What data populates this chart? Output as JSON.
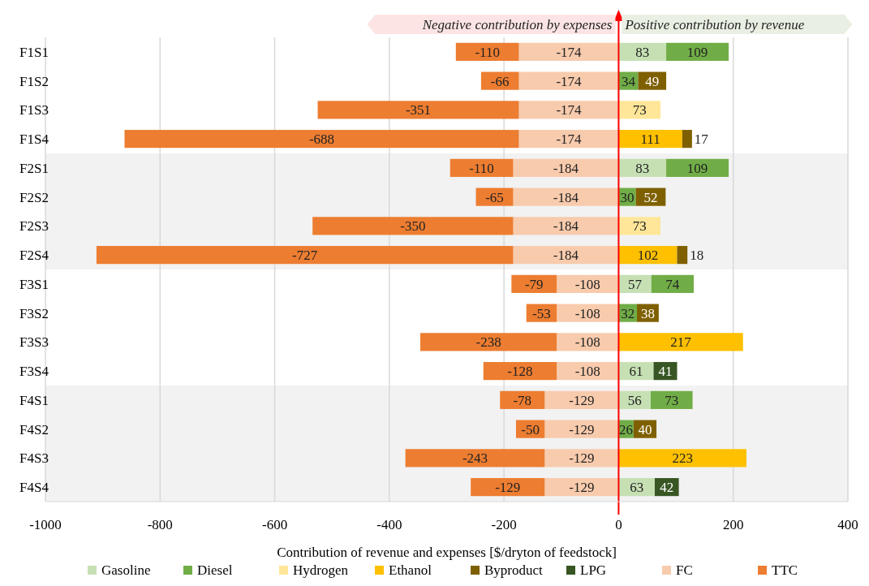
{
  "chart_data": {
    "type": "bar",
    "orientation": "horizontal",
    "stacked": true,
    "data_labels": true,
    "grid": "x",
    "legend": "bottom",
    "xlabel": "Contribution of revenue and expenses [$/dryton of feedstock]",
    "categories": [
      "F1S1",
      "F1S2",
      "F1S3",
      "F1S4",
      "F2S1",
      "F2S2",
      "F2S3",
      "F2S4",
      "F3S1",
      "F3S2",
      "F3S3",
      "F3S4",
      "F4S1",
      "F4S2",
      "F4S3",
      "F4S4"
    ],
    "xlim": [
      -1000,
      400
    ],
    "xticks": [
      -1000,
      -800,
      -600,
      -400,
      -200,
      0,
      200,
      400
    ],
    "series": [
      {
        "name": "Gasoline",
        "color": "#c6e0b4",
        "values": [
          83,
          null,
          null,
          null,
          83,
          null,
          null,
          null,
          57,
          null,
          null,
          61,
          56,
          null,
          null,
          63
        ]
      },
      {
        "name": "Diesel",
        "color": "#70ad47",
        "values": [
          109,
          34,
          null,
          null,
          109,
          30,
          null,
          null,
          74,
          32,
          null,
          null,
          73,
          26,
          null,
          null
        ]
      },
      {
        "name": "Hydrogen",
        "color": "#ffe699",
        "values": [
          null,
          null,
          73,
          null,
          null,
          null,
          73,
          null,
          null,
          null,
          null,
          null,
          null,
          null,
          null,
          null
        ]
      },
      {
        "name": "Ethanol",
        "color": "#ffc000",
        "values": [
          null,
          null,
          null,
          111,
          null,
          null,
          null,
          102,
          null,
          null,
          217,
          null,
          null,
          null,
          223,
          null
        ]
      },
      {
        "name": "Byproduct",
        "color": "#7f6000",
        "values": [
          null,
          49,
          null,
          17,
          null,
          52,
          null,
          18,
          null,
          38,
          null,
          null,
          null,
          40,
          null,
          null
        ]
      },
      {
        "name": "LPG",
        "color": "#375623",
        "values": [
          null,
          null,
          null,
          null,
          null,
          null,
          null,
          null,
          null,
          null,
          null,
          41,
          null,
          null,
          null,
          42
        ]
      },
      {
        "name": "FC",
        "color": "#f8cbad",
        "values": [
          -174,
          -174,
          -174,
          -174,
          -184,
          -184,
          -184,
          -184,
          -108,
          -108,
          -108,
          -108,
          -129,
          -129,
          -129,
          -129
        ]
      },
      {
        "name": "TTC",
        "color": "#ed7d31",
        "values": [
          -110,
          -66,
          -351,
          -688,
          -110,
          -65,
          -350,
          -727,
          -79,
          -53,
          -238,
          -128,
          -78,
          -50,
          -243,
          -129
        ]
      }
    ],
    "ref_lines": [
      {
        "axis": "x",
        "value": 0,
        "color": "#ff0000"
      }
    ],
    "bands": [
      {
        "axis": "y",
        "from": "F2S1",
        "to": "F2S4",
        "color": "#f2f2f2"
      },
      {
        "axis": "y",
        "from": "F4S1",
        "to": "F4S4",
        "color": "#f2f2f2"
      }
    ],
    "annotations": [
      "Negative contribution by expenses",
      "Positive contribution by revenue"
    ]
  }
}
